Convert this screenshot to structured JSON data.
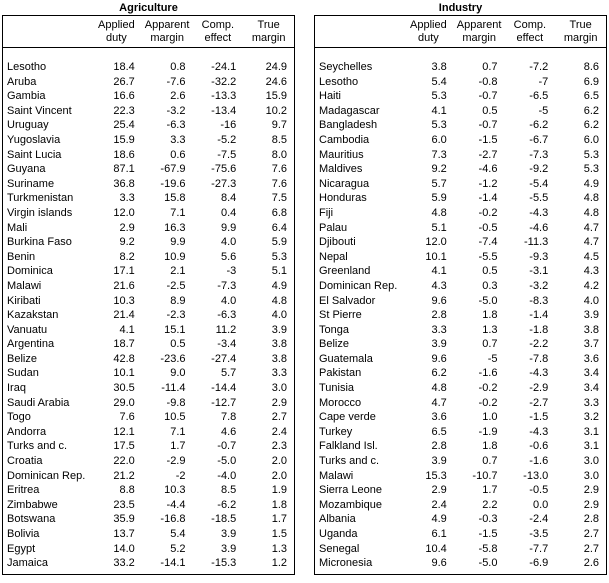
{
  "tables": [
    {
      "title": "Agriculture",
      "columns": [
        "Applied duty",
        "Apparent margin",
        "Comp. effect",
        "True margin"
      ],
      "rows": [
        {
          "country": "Lesotho",
          "values": [
            "18.4",
            "0.8",
            "-24.1",
            "24.9"
          ]
        },
        {
          "country": "Aruba",
          "values": [
            "26.7",
            "-7.6",
            "-32.2",
            "24.6"
          ]
        },
        {
          "country": "Gambia",
          "values": [
            "16.6",
            "2.6",
            "-13.3",
            "15.9"
          ]
        },
        {
          "country": "Saint Vincent",
          "values": [
            "22.3",
            "-3.2",
            "-13.4",
            "10.2"
          ]
        },
        {
          "country": "Uruguay",
          "values": [
            "25.4",
            "-6.3",
            "-16",
            "9.7"
          ]
        },
        {
          "country": "Yugoslavia",
          "values": [
            "15.9",
            "3.3",
            "-5.2",
            "8.5"
          ]
        },
        {
          "country": "Saint Lucia",
          "values": [
            "18.6",
            "0.6",
            "-7.5",
            "8.0"
          ]
        },
        {
          "country": "Guyana",
          "values": [
            "87.1",
            "-67.9",
            "-75.6",
            "7.6"
          ]
        },
        {
          "country": "Suriname",
          "values": [
            "36.8",
            "-19.6",
            "-27.3",
            "7.6"
          ]
        },
        {
          "country": "Turkmenistan",
          "values": [
            "3.3",
            "15.8",
            "8.4",
            "7.5"
          ]
        },
        {
          "country": "Virgin islands",
          "values": [
            "12.0",
            "7.1",
            "0.4",
            "6.8"
          ]
        },
        {
          "country": "Mali",
          "values": [
            "2.9",
            "16.3",
            "9.9",
            "6.4"
          ]
        },
        {
          "country": "Burkina Faso",
          "values": [
            "9.2",
            "9.9",
            "4.0",
            "5.9"
          ]
        },
        {
          "country": "Benin",
          "values": [
            "8.2",
            "10.9",
            "5.6",
            "5.3"
          ]
        },
        {
          "country": "Dominica",
          "values": [
            "17.1",
            "2.1",
            "-3",
            "5.1"
          ]
        },
        {
          "country": "Malawi",
          "values": [
            "21.6",
            "-2.5",
            "-7.3",
            "4.9"
          ]
        },
        {
          "country": "Kiribati",
          "values": [
            "10.3",
            "8.9",
            "4.0",
            "4.8"
          ]
        },
        {
          "country": "Kazakstan",
          "values": [
            "21.4",
            "-2.3",
            "-6.3",
            "4.0"
          ]
        },
        {
          "country": "Vanuatu",
          "values": [
            "4.1",
            "15.1",
            "11.2",
            "3.9"
          ]
        },
        {
          "country": "Argentina",
          "values": [
            "18.7",
            "0.5",
            "-3.4",
            "3.8"
          ]
        },
        {
          "country": "Belize",
          "values": [
            "42.8",
            "-23.6",
            "-27.4",
            "3.8"
          ]
        },
        {
          "country": "Sudan",
          "values": [
            "10.1",
            "9.0",
            "5.7",
            "3.3"
          ]
        },
        {
          "country": "Iraq",
          "values": [
            "30.5",
            "-11.4",
            "-14.4",
            "3.0"
          ]
        },
        {
          "country": "Saudi Arabia",
          "values": [
            "29.0",
            "-9.8",
            "-12.7",
            "2.9"
          ]
        },
        {
          "country": "Togo",
          "values": [
            "7.6",
            "10.5",
            "7.8",
            "2.7"
          ]
        },
        {
          "country": "Andorra",
          "values": [
            "12.1",
            "7.1",
            "4.6",
            "2.4"
          ]
        },
        {
          "country": "Turks and c.",
          "values": [
            "17.5",
            "1.7",
            "-0.7",
            "2.3"
          ]
        },
        {
          "country": "Croatia",
          "values": [
            "22.0",
            "-2.9",
            "-5.0",
            "2.0"
          ]
        },
        {
          "country": "Dominican Rep.",
          "values": [
            "21.2",
            "-2",
            "-4.0",
            "2.0"
          ]
        },
        {
          "country": "Eritrea",
          "values": [
            "8.8",
            "10.3",
            "8.5",
            "1.9"
          ]
        },
        {
          "country": "Zimbabwe",
          "values": [
            "23.5",
            "-4.4",
            "-6.2",
            "1.8"
          ]
        },
        {
          "country": "Botswana",
          "values": [
            "35.9",
            "-16.8",
            "-18.5",
            "1.7"
          ]
        },
        {
          "country": "Bolivia",
          "values": [
            "13.7",
            "5.4",
            "3.9",
            "1.5"
          ]
        },
        {
          "country": "Egypt",
          "values": [
            "14.0",
            "5.2",
            "3.9",
            "1.3"
          ]
        },
        {
          "country": "Jamaica",
          "values": [
            "33.2",
            "-14.1",
            "-15.3",
            "1.2"
          ]
        }
      ]
    },
    {
      "title": "Industry",
      "columns": [
        "Applied duty",
        "Apparent margin",
        "Comp. effect",
        "True margin"
      ],
      "rows": [
        {
          "country": "Seychelles",
          "values": [
            "3.8",
            "0.7",
            "-7.2",
            "8.6"
          ]
        },
        {
          "country": "Lesotho",
          "values": [
            "5.4",
            "-0.8",
            "-7",
            "6.9"
          ]
        },
        {
          "country": "Haiti",
          "values": [
            "5.3",
            "-0.7",
            "-6.5",
            "6.5"
          ]
        },
        {
          "country": "Madagascar",
          "values": [
            "4.1",
            "0.5",
            "-5",
            "6.2"
          ]
        },
        {
          "country": "Bangladesh",
          "values": [
            "5.3",
            "-0.7",
            "-6.2",
            "6.2"
          ]
        },
        {
          "country": "Cambodia",
          "values": [
            "6.0",
            "-1.5",
            "-6.7",
            "6.0"
          ]
        },
        {
          "country": "Mauritius",
          "values": [
            "7.3",
            "-2.7",
            "-7.3",
            "5.3"
          ]
        },
        {
          "country": "Maldives",
          "values": [
            "9.2",
            "-4.6",
            "-9.2",
            "5.3"
          ]
        },
        {
          "country": "Nicaragua",
          "values": [
            "5.7",
            "-1.2",
            "-5.4",
            "4.9"
          ]
        },
        {
          "country": "Honduras",
          "values": [
            "5.9",
            "-1.4",
            "-5.5",
            "4.8"
          ]
        },
        {
          "country": "Fiji",
          "values": [
            "4.8",
            "-0.2",
            "-4.3",
            "4.8"
          ]
        },
        {
          "country": "Palau",
          "values": [
            "5.1",
            "-0.5",
            "-4.6",
            "4.7"
          ]
        },
        {
          "country": "Djibouti",
          "values": [
            "12.0",
            "-7.4",
            "-11.3",
            "4.7"
          ]
        },
        {
          "country": "Nepal",
          "values": [
            "10.1",
            "-5.5",
            "-9.3",
            "4.5"
          ]
        },
        {
          "country": "Greenland",
          "values": [
            "4.1",
            "0.5",
            "-3.1",
            "4.3"
          ]
        },
        {
          "country": "Dominican Rep.",
          "values": [
            "4.3",
            "0.3",
            "-3.2",
            "4.2"
          ]
        },
        {
          "country": "El Salvador",
          "values": [
            "9.6",
            "-5.0",
            "-8.3",
            "4.0"
          ]
        },
        {
          "country": "St Pierre",
          "values": [
            "2.8",
            "1.8",
            "-1.4",
            "3.9"
          ]
        },
        {
          "country": "Tonga",
          "values": [
            "3.3",
            "1.3",
            "-1.8",
            "3.8"
          ]
        },
        {
          "country": "Belize",
          "values": [
            "3.9",
            "0.7",
            "-2.2",
            "3.7"
          ]
        },
        {
          "country": "Guatemala",
          "values": [
            "9.6",
            "-5",
            "-7.8",
            "3.6"
          ]
        },
        {
          "country": "Pakistan",
          "values": [
            "6.2",
            "-1.6",
            "-4.3",
            "3.4"
          ]
        },
        {
          "country": "Tunisia",
          "values": [
            "4.8",
            "-0.2",
            "-2.9",
            "3.4"
          ]
        },
        {
          "country": "Morocco",
          "values": [
            "4.7",
            "-0.2",
            "-2.7",
            "3.3"
          ]
        },
        {
          "country": "Cape verde",
          "values": [
            "3.6",
            "1.0",
            "-1.5",
            "3.2"
          ]
        },
        {
          "country": "Turkey",
          "values": [
            "6.5",
            "-1.9",
            "-4.3",
            "3.1"
          ]
        },
        {
          "country": "Falkland Isl.",
          "values": [
            "2.8",
            "1.8",
            "-0.6",
            "3.1"
          ]
        },
        {
          "country": "Turks and c.",
          "values": [
            "3.9",
            "0.7",
            "-1.6",
            "3.0"
          ]
        },
        {
          "country": "Malawi",
          "values": [
            "15.3",
            "-10.7",
            "-13.0",
            "3.0"
          ]
        },
        {
          "country": "Sierra Leone",
          "values": [
            "2.9",
            "1.7",
            "-0.5",
            "2.9"
          ]
        },
        {
          "country": "Mozambique",
          "values": [
            "2.4",
            "2.2",
            "0.0",
            "2.9"
          ]
        },
        {
          "country": "Albania",
          "values": [
            "4.9",
            "-0.3",
            "-2.4",
            "2.8"
          ]
        },
        {
          "country": "Uganda",
          "values": [
            "6.1",
            "-1.5",
            "-3.5",
            "2.7"
          ]
        },
        {
          "country": "Senegal",
          "values": [
            "10.4",
            "-5.8",
            "-7.7",
            "2.7"
          ]
        },
        {
          "country": "Micronesia",
          "values": [
            "9.6",
            "-5.0",
            "-6.9",
            "2.6"
          ]
        }
      ]
    }
  ]
}
